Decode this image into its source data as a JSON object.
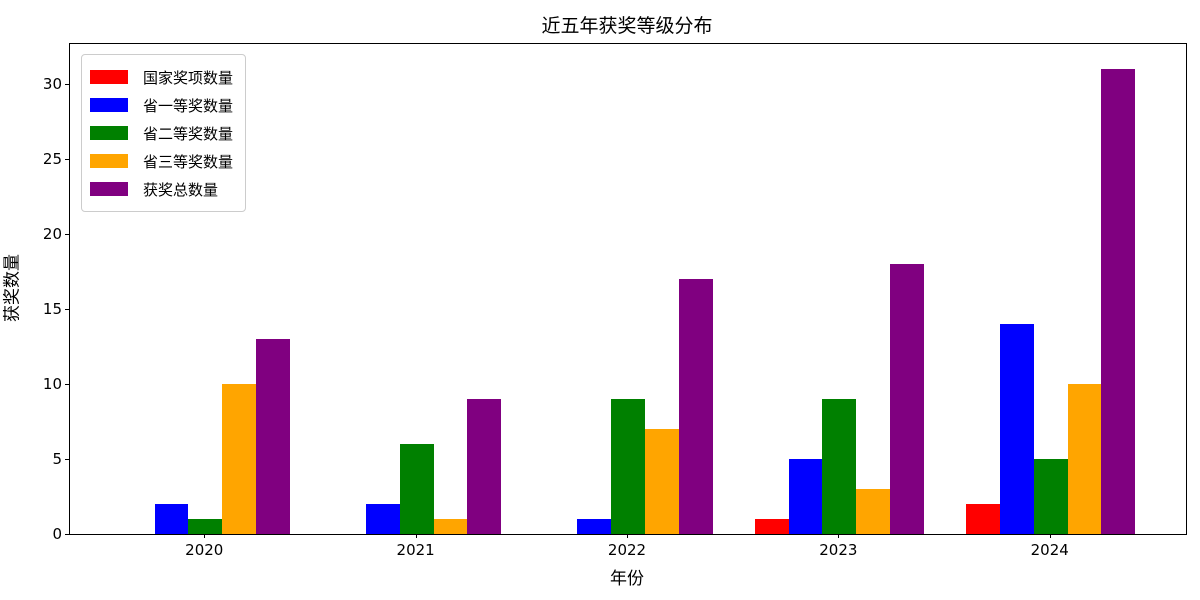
{
  "chart_data": {
    "type": "bar",
    "title": "近五年获奖等级分布",
    "xlabel": "年份",
    "ylabel": "获奖数量",
    "categories": [
      "2020",
      "2021",
      "2022",
      "2023",
      "2024"
    ],
    "series": [
      {
        "name": "国家奖项数量",
        "color": "#ff0000",
        "values": [
          0,
          0,
          0,
          1,
          2
        ]
      },
      {
        "name": "省一等奖数量",
        "color": "#0000ff",
        "values": [
          2,
          2,
          1,
          5,
          14
        ]
      },
      {
        "name": "省二等奖数量",
        "color": "#008000",
        "values": [
          1,
          6,
          9,
          9,
          5
        ]
      },
      {
        "name": "省三等奖数量",
        "color": "#ffa500",
        "values": [
          10,
          1,
          7,
          3,
          10
        ]
      },
      {
        "name": "获奖总数量",
        "color": "#800080",
        "values": [
          13,
          9,
          17,
          18,
          31
        ]
      }
    ],
    "yticks": [
      0,
      5,
      10,
      15,
      20,
      25,
      30
    ],
    "ylim": [
      0,
      32.67
    ],
    "xlim": [
      -0.64,
      4.64
    ],
    "bar_width": 0.16,
    "grid": false,
    "legend_position": "upper left",
    "background_color": "#ffffff",
    "spine_color": "#000000"
  }
}
